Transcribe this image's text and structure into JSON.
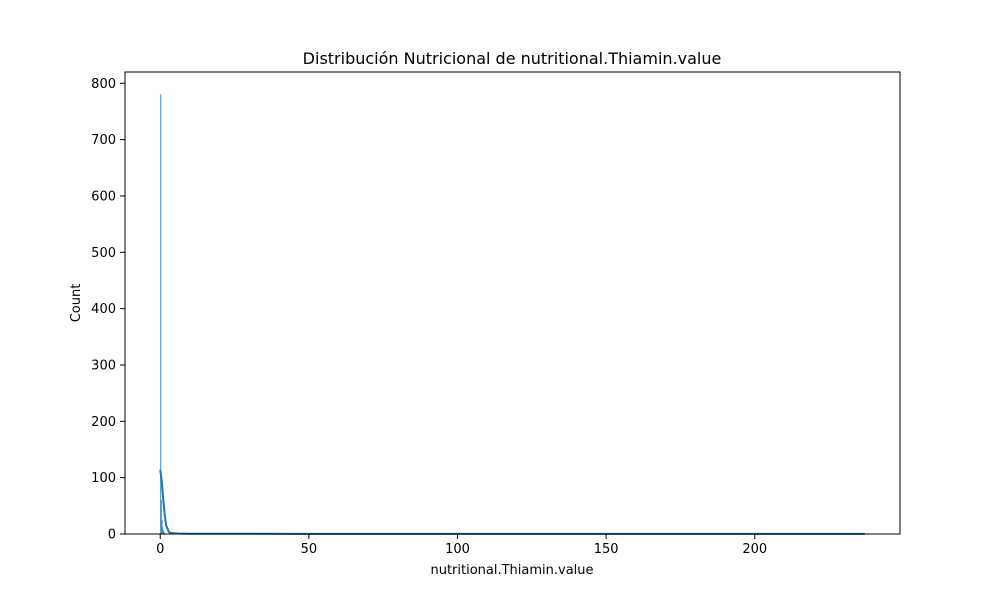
{
  "chart_data": {
    "type": "histogram",
    "title": "Distribución Nutricional de nutritional.Thiamin.value",
    "xlabel": "nutritional.Thiamin.value",
    "ylabel": "Count",
    "xlim": [
      -11.85,
      248.85
    ],
    "ylim": [
      0,
      820
    ],
    "x_ticks": [
      0,
      50,
      100,
      150,
      200
    ],
    "y_ticks": [
      0,
      100,
      200,
      300,
      400,
      500,
      600,
      700,
      800
    ],
    "grid": false,
    "legend": "none",
    "bar_color": "#1f77b4",
    "bar_opacity": 0.5,
    "line_color": "#1f77b4",
    "bins": [
      {
        "x0": 0.0,
        "x1": 0.237,
        "count": 780
      },
      {
        "x0": 0.237,
        "x1": 0.474,
        "count": 60
      },
      {
        "x0": 0.474,
        "x1": 0.711,
        "count": 25
      },
      {
        "x0": 0.711,
        "x1": 0.948,
        "count": 12
      },
      {
        "x0": 0.948,
        "x1": 1.185,
        "count": 6
      },
      {
        "x0": 1.185,
        "x1": 1.422,
        "count": 3
      },
      {
        "x0": 236.763,
        "x1": 237.0,
        "count": 1
      }
    ],
    "kde": {
      "x": [
        0,
        0.5,
        1,
        1.5,
        2,
        3,
        4,
        6,
        10,
        20,
        50,
        100,
        150,
        200,
        237
      ],
      "y": [
        114,
        95,
        62,
        35,
        15,
        3,
        1.5,
        0.8,
        0.5,
        0.4,
        0.3,
        0.3,
        0.3,
        0.3,
        0.2
      ]
    }
  }
}
